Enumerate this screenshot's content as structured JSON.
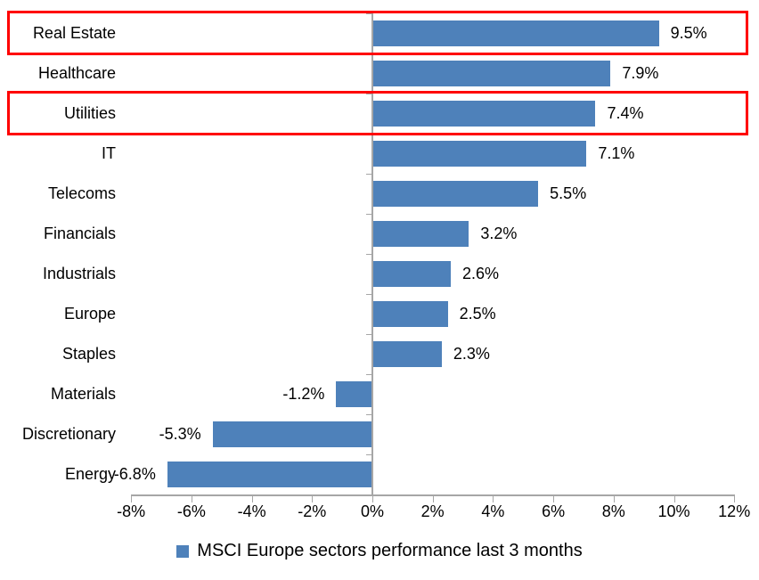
{
  "chart_data": {
    "type": "bar",
    "orientation": "horizontal",
    "title": "",
    "legend": "MSCI Europe sectors performance last 3 months",
    "categories": [
      "Real Estate",
      "Healthcare",
      "Utilities",
      "IT",
      "Telecoms",
      "Financials",
      "Industrials",
      "Europe",
      "Staples",
      "Materials",
      "Discretionary",
      "Energy"
    ],
    "values": [
      9.5,
      7.9,
      7.4,
      7.1,
      5.5,
      3.2,
      2.6,
      2.5,
      2.3,
      -1.2,
      -5.3,
      -6.8
    ],
    "value_labels": [
      "9.5%",
      "7.9%",
      "7.4%",
      "7.1%",
      "5.5%",
      "3.2%",
      "2.6%",
      "2.5%",
      "2.3%",
      "-1.2%",
      "-5.3%",
      "-6.8%"
    ],
    "highlighted_categories": [
      "Real Estate",
      "Utilities"
    ],
    "x_axis": {
      "min": -8,
      "max": 12,
      "tick_step": 2,
      "tick_values": [
        -8,
        -6,
        -4,
        -2,
        0,
        2,
        4,
        6,
        8,
        10,
        12
      ],
      "tick_labels": [
        "-8%",
        "-6%",
        "-4%",
        "-2%",
        "0%",
        "2%",
        "4%",
        "6%",
        "8%",
        "10%",
        "12%"
      ]
    },
    "grid": false,
    "legend_position": "bottom-center",
    "data_labels": true,
    "colors": {
      "bar": "#4E81BA",
      "highlight_box": "#FF0000",
      "axis": "#A6A6A6",
      "text": "#000000",
      "background": "#FFFFFF"
    }
  }
}
